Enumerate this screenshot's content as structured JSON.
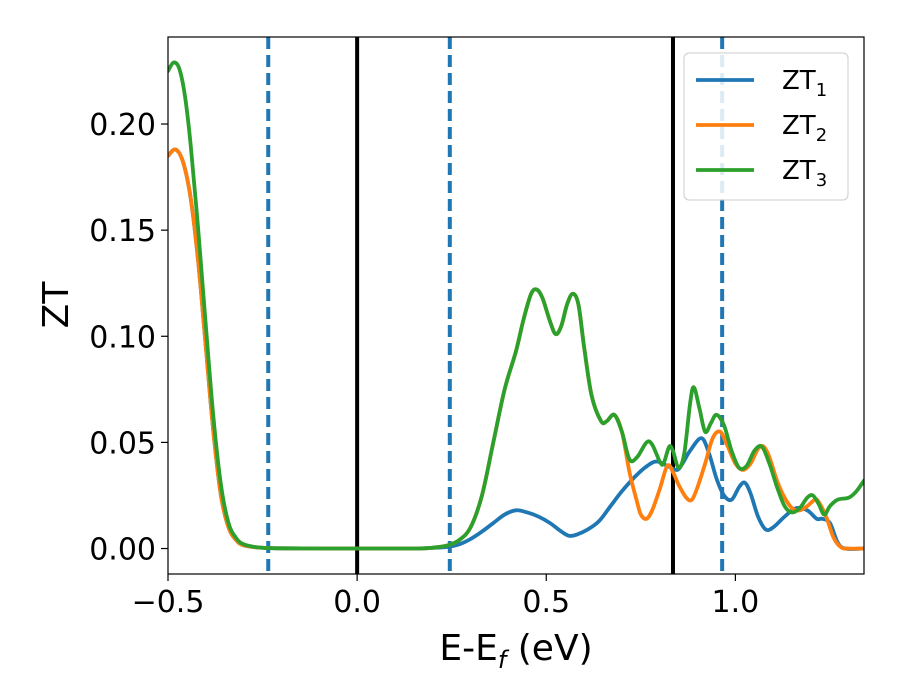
{
  "chart_data": {
    "type": "line",
    "xlabel": "E-E",
    "xlabel_sub": "f",
    "xlabel_unit": " (eV)",
    "ylabel": "ZT",
    "xlim": [
      -0.5,
      1.34
    ],
    "ylim": [
      -0.012,
      0.241
    ],
    "xticks": [
      -0.5,
      0.0,
      0.5,
      1.0
    ],
    "xtick_labels": [
      "−0.5",
      "0.0",
      "0.5",
      "1.0"
    ],
    "yticks": [
      0.0,
      0.05,
      0.1,
      0.15,
      0.2
    ],
    "ytick_labels": [
      "0.00",
      "0.05",
      "0.10",
      "0.15",
      "0.20"
    ],
    "grid": false,
    "legend_position": "top-right",
    "vlines": [
      {
        "x": -0.235,
        "style": "dashed",
        "color": "#1f77b4"
      },
      {
        "x": 0.0,
        "style": "solid",
        "color": "#000000"
      },
      {
        "x": 0.245,
        "style": "dashed",
        "color": "#1f77b4"
      },
      {
        "x": 0.835,
        "style": "solid",
        "color": "#000000"
      },
      {
        "x": 0.965,
        "style": "dashed",
        "color": "#1f77b4"
      }
    ],
    "series": [
      {
        "name": "ZT",
        "name_sub": "1",
        "color": "#1f77b4",
        "points": [
          [
            -0.5,
            0.185
          ],
          [
            -0.48,
            0.188
          ],
          [
            -0.46,
            0.182
          ],
          [
            -0.44,
            0.165
          ],
          [
            -0.42,
            0.135
          ],
          [
            -0.4,
            0.095
          ],
          [
            -0.38,
            0.055
          ],
          [
            -0.36,
            0.025
          ],
          [
            -0.34,
            0.01
          ],
          [
            -0.32,
            0.004
          ],
          [
            -0.3,
            0.0015
          ],
          [
            -0.26,
            0.0005
          ],
          [
            -0.2,
            0.0001
          ],
          [
            0.0,
            0.0
          ],
          [
            0.15,
            0.0
          ],
          [
            0.2,
            0.0003
          ],
          [
            0.24,
            0.0008
          ],
          [
            0.27,
            0.002
          ],
          [
            0.3,
            0.0045
          ],
          [
            0.33,
            0.008
          ],
          [
            0.36,
            0.012
          ],
          [
            0.39,
            0.016
          ],
          [
            0.42,
            0.018
          ],
          [
            0.45,
            0.017
          ],
          [
            0.48,
            0.015
          ],
          [
            0.51,
            0.012
          ],
          [
            0.54,
            0.008
          ],
          [
            0.56,
            0.006
          ],
          [
            0.58,
            0.0065
          ],
          [
            0.61,
            0.009
          ],
          [
            0.64,
            0.013
          ],
          [
            0.67,
            0.02
          ],
          [
            0.7,
            0.027
          ],
          [
            0.73,
            0.033
          ],
          [
            0.76,
            0.038
          ],
          [
            0.79,
            0.041
          ],
          [
            0.82,
            0.039
          ],
          [
            0.845,
            0.037
          ],
          [
            0.86,
            0.04
          ],
          [
            0.88,
            0.046
          ],
          [
            0.91,
            0.052
          ],
          [
            0.93,
            0.045
          ],
          [
            0.95,
            0.033
          ],
          [
            0.97,
            0.025
          ],
          [
            0.99,
            0.023
          ],
          [
            1.01,
            0.029
          ],
          [
            1.025,
            0.031
          ],
          [
            1.04,
            0.026
          ],
          [
            1.06,
            0.015
          ],
          [
            1.08,
            0.009
          ],
          [
            1.1,
            0.01
          ],
          [
            1.13,
            0.015
          ],
          [
            1.16,
            0.019
          ],
          [
            1.19,
            0.018
          ],
          [
            1.215,
            0.014
          ],
          [
            1.23,
            0.014
          ],
          [
            1.25,
            0.012
          ],
          [
            1.27,
            0.003
          ],
          [
            1.29,
            0.0
          ],
          [
            1.34,
            0.0
          ]
        ]
      },
      {
        "name": "ZT",
        "name_sub": "2",
        "color": "#ff7f0e",
        "points": [
          [
            -0.5,
            0.185
          ],
          [
            -0.48,
            0.188
          ],
          [
            -0.46,
            0.182
          ],
          [
            -0.44,
            0.165
          ],
          [
            -0.42,
            0.135
          ],
          [
            -0.4,
            0.095
          ],
          [
            -0.38,
            0.055
          ],
          [
            -0.36,
            0.025
          ],
          [
            -0.34,
            0.01
          ],
          [
            -0.32,
            0.004
          ],
          [
            -0.3,
            0.0015
          ],
          [
            -0.26,
            0.0005
          ],
          [
            -0.2,
            0.0001
          ],
          [
            0.0,
            0.0
          ],
          [
            0.15,
            0.0
          ],
          [
            0.2,
            0.0004
          ],
          [
            0.24,
            0.0015
          ],
          [
            0.27,
            0.004
          ],
          [
            0.3,
            0.01
          ],
          [
            0.33,
            0.025
          ],
          [
            0.36,
            0.05
          ],
          [
            0.39,
            0.075
          ],
          [
            0.42,
            0.093
          ],
          [
            0.44,
            0.108
          ],
          [
            0.46,
            0.12
          ],
          [
            0.475,
            0.122
          ],
          [
            0.49,
            0.118
          ],
          [
            0.51,
            0.107
          ],
          [
            0.525,
            0.101
          ],
          [
            0.54,
            0.105
          ],
          [
            0.555,
            0.115
          ],
          [
            0.57,
            0.12
          ],
          [
            0.585,
            0.115
          ],
          [
            0.6,
            0.095
          ],
          [
            0.62,
            0.072
          ],
          [
            0.645,
            0.06
          ],
          [
            0.66,
            0.06
          ],
          [
            0.68,
            0.063
          ],
          [
            0.7,
            0.055
          ],
          [
            0.72,
            0.036
          ],
          [
            0.74,
            0.022
          ],
          [
            0.75,
            0.016
          ],
          [
            0.765,
            0.014
          ],
          [
            0.78,
            0.018
          ],
          [
            0.8,
            0.028
          ],
          [
            0.82,
            0.039
          ],
          [
            0.835,
            0.036
          ],
          [
            0.85,
            0.03
          ],
          [
            0.87,
            0.024
          ],
          [
            0.885,
            0.023
          ],
          [
            0.9,
            0.029
          ],
          [
            0.92,
            0.04
          ],
          [
            0.94,
            0.052
          ],
          [
            0.96,
            0.055
          ],
          [
            0.98,
            0.048
          ],
          [
            1.0,
            0.04
          ],
          [
            1.02,
            0.037
          ],
          [
            1.04,
            0.04
          ],
          [
            1.06,
            0.047
          ],
          [
            1.075,
            0.048
          ],
          [
            1.09,
            0.043
          ],
          [
            1.11,
            0.032
          ],
          [
            1.13,
            0.024
          ],
          [
            1.15,
            0.019
          ],
          [
            1.17,
            0.018
          ],
          [
            1.19,
            0.02
          ],
          [
            1.21,
            0.023
          ],
          [
            1.22,
            0.022
          ],
          [
            1.24,
            0.015
          ],
          [
            1.26,
            0.005
          ],
          [
            1.28,
            0.0005
          ],
          [
            1.3,
            0.0
          ],
          [
            1.34,
            0.0
          ]
        ]
      },
      {
        "name": "ZT",
        "name_sub": "3",
        "color": "#2ca02c",
        "points": [
          [
            -0.5,
            0.225
          ],
          [
            -0.485,
            0.229
          ],
          [
            -0.47,
            0.226
          ],
          [
            -0.455,
            0.213
          ],
          [
            -0.44,
            0.19
          ],
          [
            -0.42,
            0.15
          ],
          [
            -0.4,
            0.105
          ],
          [
            -0.38,
            0.062
          ],
          [
            -0.36,
            0.03
          ],
          [
            -0.34,
            0.012
          ],
          [
            -0.32,
            0.005
          ],
          [
            -0.3,
            0.002
          ],
          [
            -0.26,
            0.0005
          ],
          [
            -0.2,
            0.0001
          ],
          [
            0.0,
            0.0
          ],
          [
            0.15,
            0.0
          ],
          [
            0.2,
            0.0004
          ],
          [
            0.24,
            0.0015
          ],
          [
            0.27,
            0.004
          ],
          [
            0.3,
            0.01
          ],
          [
            0.33,
            0.025
          ],
          [
            0.36,
            0.05
          ],
          [
            0.39,
            0.075
          ],
          [
            0.42,
            0.093
          ],
          [
            0.44,
            0.108
          ],
          [
            0.46,
            0.12
          ],
          [
            0.475,
            0.122
          ],
          [
            0.49,
            0.118
          ],
          [
            0.51,
            0.107
          ],
          [
            0.525,
            0.101
          ],
          [
            0.54,
            0.105
          ],
          [
            0.555,
            0.115
          ],
          [
            0.57,
            0.12
          ],
          [
            0.585,
            0.115
          ],
          [
            0.6,
            0.095
          ],
          [
            0.62,
            0.072
          ],
          [
            0.645,
            0.06
          ],
          [
            0.66,
            0.06
          ],
          [
            0.68,
            0.063
          ],
          [
            0.7,
            0.055
          ],
          [
            0.72,
            0.042
          ],
          [
            0.74,
            0.043
          ],
          [
            0.765,
            0.05
          ],
          [
            0.78,
            0.049
          ],
          [
            0.8,
            0.041
          ],
          [
            0.81,
            0.04
          ],
          [
            0.825,
            0.048
          ],
          [
            0.835,
            0.046
          ],
          [
            0.85,
            0.038
          ],
          [
            0.865,
            0.045
          ],
          [
            0.88,
            0.068
          ],
          [
            0.89,
            0.076
          ],
          [
            0.905,
            0.066
          ],
          [
            0.92,
            0.055
          ],
          [
            0.935,
            0.059
          ],
          [
            0.95,
            0.063
          ],
          [
            0.97,
            0.058
          ],
          [
            0.99,
            0.046
          ],
          [
            1.01,
            0.038
          ],
          [
            1.03,
            0.039
          ],
          [
            1.05,
            0.046
          ],
          [
            1.07,
            0.048
          ],
          [
            1.09,
            0.04
          ],
          [
            1.11,
            0.029
          ],
          [
            1.13,
            0.02
          ],
          [
            1.15,
            0.017
          ],
          [
            1.17,
            0.019
          ],
          [
            1.19,
            0.024
          ],
          [
            1.205,
            0.025
          ],
          [
            1.22,
            0.021
          ],
          [
            1.235,
            0.016
          ],
          [
            1.25,
            0.02
          ],
          [
            1.27,
            0.023
          ],
          [
            1.3,
            0.024
          ],
          [
            1.32,
            0.027
          ],
          [
            1.34,
            0.032
          ]
        ]
      }
    ]
  }
}
